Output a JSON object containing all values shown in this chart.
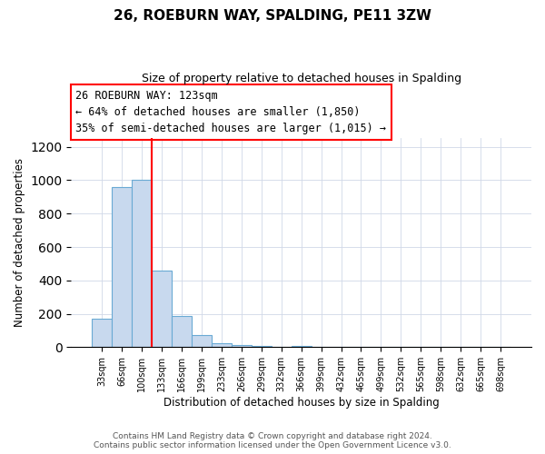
{
  "title": "26, ROEBURN WAY, SPALDING, PE11 3ZW",
  "subtitle": "Size of property relative to detached houses in Spalding",
  "xlabel": "Distribution of detached houses by size in Spalding",
  "ylabel": "Number of detached properties",
  "bar_labels": [
    "33sqm",
    "66sqm",
    "100sqm",
    "133sqm",
    "166sqm",
    "199sqm",
    "233sqm",
    "266sqm",
    "299sqm",
    "332sqm",
    "366sqm",
    "399sqm",
    "432sqm",
    "465sqm",
    "499sqm",
    "532sqm",
    "565sqm",
    "598sqm",
    "632sqm",
    "665sqm",
    "698sqm"
  ],
  "bar_values": [
    170,
    960,
    1000,
    460,
    185,
    75,
    25,
    15,
    10,
    0,
    10,
    0,
    0,
    0,
    0,
    0,
    0,
    0,
    0,
    0,
    0
  ],
  "bar_color": "#c8d9ee",
  "bar_edge_color": "#6aaad4",
  "vline_x": 2.5,
  "vline_color": "red",
  "ylim": [
    0,
    1250
  ],
  "yticks": [
    0,
    200,
    400,
    600,
    800,
    1000,
    1200
  ],
  "annotation_title": "26 ROEBURN WAY: 123sqm",
  "annotation_line1": "← 64% of detached houses are smaller (1,850)",
  "annotation_line2": "35% of semi-detached houses are larger (1,015) →",
  "annotation_box_color": "#ffffff",
  "annotation_box_edge": "red",
  "footer1": "Contains HM Land Registry data © Crown copyright and database right 2024.",
  "footer2": "Contains public sector information licensed under the Open Government Licence v3.0.",
  "fig_width": 6.0,
  "fig_height": 5.0,
  "dpi": 100
}
